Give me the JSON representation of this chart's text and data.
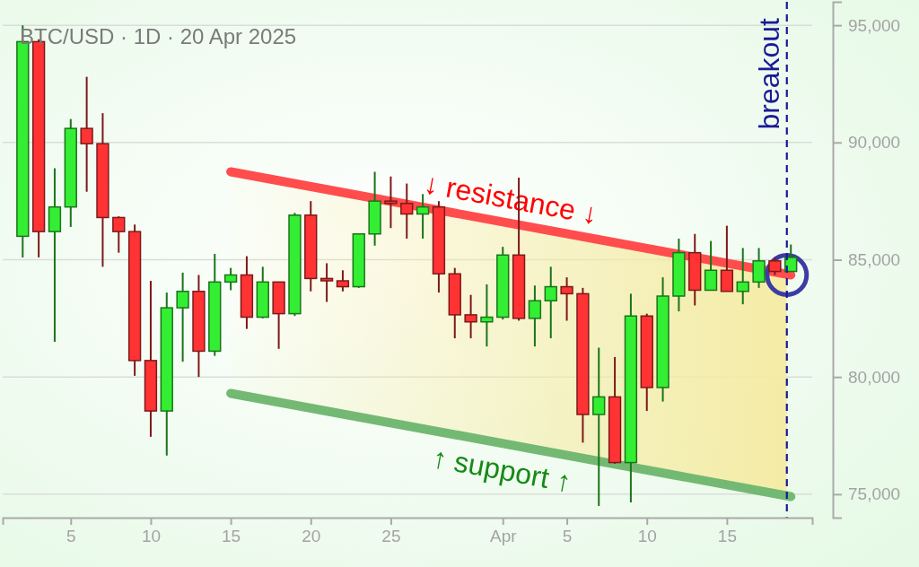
{
  "chart_data": {
    "type": "candlestick",
    "title": "BTC/USD · 1D · 20 Apr 2025",
    "x": [
      "2025-03-02",
      "2025-03-03",
      "2025-03-04",
      "2025-03-05",
      "2025-03-06",
      "2025-03-07",
      "2025-03-08",
      "2025-03-09",
      "2025-03-10",
      "2025-03-11",
      "2025-03-12",
      "2025-03-13",
      "2025-03-14",
      "2025-03-15",
      "2025-03-16",
      "2025-03-17",
      "2025-03-18",
      "2025-03-19",
      "2025-03-20",
      "2025-03-21",
      "2025-03-22",
      "2025-03-23",
      "2025-03-24",
      "2025-03-25",
      "2025-03-26",
      "2025-03-27",
      "2025-03-28",
      "2025-03-29",
      "2025-03-30",
      "2025-03-31",
      "2025-04-01",
      "2025-04-02",
      "2025-04-03",
      "2025-04-04",
      "2025-04-05",
      "2025-04-06",
      "2025-04-07",
      "2025-04-08",
      "2025-04-09",
      "2025-04-10",
      "2025-04-11",
      "2025-04-12",
      "2025-04-13",
      "2025-04-14",
      "2025-04-15",
      "2025-04-16",
      "2025-04-17",
      "2025-04-18",
      "2025-04-19"
    ],
    "ohlc": [
      [
        86000,
        95000,
        85100,
        94300
      ],
      [
        94300,
        94400,
        85100,
        86200
      ],
      [
        86200,
        88900,
        81500,
        87250
      ],
      [
        87250,
        91000,
        86400,
        90600
      ],
      [
        90600,
        92800,
        87900,
        89950
      ],
      [
        89950,
        91250,
        84700,
        86800
      ],
      [
        86800,
        86850,
        85300,
        86200
      ],
      [
        86200,
        86500,
        80050,
        80700
      ],
      [
        80700,
        84100,
        77450,
        78550
      ],
      [
        78550,
        83600,
        76650,
        82950
      ],
      [
        82950,
        84450,
        80650,
        83650
      ],
      [
        83650,
        84350,
        80000,
        81100
      ],
      [
        81100,
        85250,
        80900,
        84050
      ],
      [
        84050,
        84650,
        83700,
        84350
      ],
      [
        84350,
        85150,
        82050,
        82550
      ],
      [
        82550,
        84700,
        82500,
        84050
      ],
      [
        84050,
        84050,
        81200,
        82700
      ],
      [
        82700,
        87000,
        82600,
        86900
      ],
      [
        86900,
        87500,
        83650,
        84200
      ],
      [
        84200,
        84850,
        83200,
        84100
      ],
      [
        84100,
        84550,
        83650,
        83850
      ],
      [
        83850,
        86100,
        83800,
        86100
      ],
      [
        86100,
        88750,
        85600,
        87500
      ],
      [
        87500,
        88550,
        86350,
        87400
      ],
      [
        87400,
        88250,
        85900,
        86950
      ],
      [
        86950,
        87800,
        85900,
        87250
      ],
      [
        87250,
        87500,
        83600,
        84400
      ],
      [
        84400,
        84650,
        81650,
        82650
      ],
      [
        82650,
        83500,
        81650,
        82350
      ],
      [
        82350,
        83950,
        81300,
        82550
      ],
      [
        82550,
        85550,
        82450,
        85200
      ],
      [
        85200,
        88500,
        82400,
        82500
      ],
      [
        82500,
        83900,
        81300,
        83250
      ],
      [
        83250,
        84700,
        81650,
        83850
      ],
      [
        83850,
        84250,
        82400,
        83550
      ],
      [
        83550,
        83800,
        77200,
        78400
      ],
      [
        78400,
        81250,
        74500,
        79150
      ],
      [
        79150,
        80850,
        76300,
        76350
      ],
      [
        76350,
        83550,
        74650,
        82600
      ],
      [
        82600,
        82700,
        78550,
        79550
      ],
      [
        79550,
        84250,
        78950,
        83450
      ],
      [
        83450,
        85900,
        82800,
        85300
      ],
      [
        85300,
        86100,
        83050,
        83700
      ],
      [
        83700,
        85800,
        83700,
        84550
      ],
      [
        84550,
        86450,
        83650,
        83650
      ],
      [
        83650,
        85500,
        83100,
        84050
      ],
      [
        84050,
        85500,
        83800,
        84950
      ],
      [
        84950,
        85100,
        84350,
        84500
      ],
      [
        84500,
        85650,
        84500,
        85100
      ]
    ],
    "colors": [
      "#33ee33",
      "#ff3333",
      "#33ee33",
      "#33ee33",
      "#ff3333",
      "#ff3333",
      "#ff3333",
      "#ff3333",
      "#ff3333",
      "#33ee33",
      "#33ee33",
      "#ff3333",
      "#33ee33",
      "#33ee33",
      "#ff3333",
      "#33ee33",
      "#ff3333",
      "#33ee33",
      "#ff3333",
      "#ff3333",
      "#ff3333",
      "#33ee33",
      "#33ee33",
      "#ff3333",
      "#ff3333",
      "#33ee33",
      "#ff3333",
      "#ff3333",
      "#ff3333",
      "#33ee33",
      "#33ee33",
      "#ff3333",
      "#33ee33",
      "#33ee33",
      "#ff3333",
      "#ff3333",
      "#33ee33",
      "#ff3333",
      "#33ee33",
      "#ff3333",
      "#33ee33",
      "#33ee33",
      "#ff3333",
      "#33ee33",
      "#ff3333",
      "#33ee33",
      "#33ee33",
      "#ff3333",
      "#33ee33"
    ],
    "series": [
      {
        "type": "line",
        "name": "↓ resistance ↓",
        "x": [
          "2025-03-15",
          "2025-04-19"
        ],
        "values": [
          88750,
          84350
        ],
        "color": "#ff4d4d"
      },
      {
        "type": "line",
        "name": "↑ support ↑",
        "x": [
          "2025-03-15",
          "2025-04-19"
        ],
        "values": [
          79300,
          74900
        ],
        "color": "#73b973"
      },
      {
        "type": "scatter",
        "x": [
          "2025-04-18T18:00"
        ],
        "values": [
          84350
        ],
        "color": "#3c3ca4",
        "marker": "circle"
      }
    ],
    "bands": [
      {
        "axis": "x",
        "from": "2025-03-15",
        "to": "2025-04-18T18:00",
        "color": "#f5eba2"
      }
    ],
    "ref_lines": [
      {
        "axis": "x",
        "value": "2025-04-18T18:00",
        "label": "breakout",
        "color": "#1a1a96",
        "line_style": "dashed"
      }
    ],
    "xlim": [
      "2025-02-28T18:00",
      "2025-04-20T08:00"
    ],
    "xticks": [
      {
        "value": "2025-03-05",
        "label": "5"
      },
      {
        "value": "2025-03-10",
        "label": "10"
      },
      {
        "value": "2025-03-15",
        "label": "15"
      },
      {
        "value": "2025-03-20",
        "label": "20"
      },
      {
        "value": "2025-03-25",
        "label": "25"
      },
      {
        "value": "2025-04-01",
        "label": "Apr"
      },
      {
        "value": "2025-04-05",
        "label": "5"
      },
      {
        "value": "2025-04-10",
        "label": "10"
      },
      {
        "value": "2025-04-15",
        "label": "15"
      }
    ],
    "ylim": [
      74000,
      96000
    ],
    "yticks": [
      {
        "value": 75000,
        "label": "75,000"
      },
      {
        "value": 80000,
        "label": "80,000"
      },
      {
        "value": 85000,
        "label": "85,000"
      },
      {
        "value": 90000,
        "label": "90,000"
      },
      {
        "value": 95000,
        "label": "95,000"
      }
    ],
    "grid": "y"
  }
}
